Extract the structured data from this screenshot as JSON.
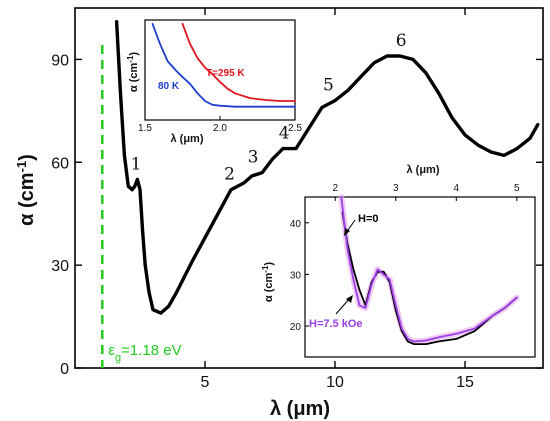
{
  "chart_data": [
    {
      "id": "main",
      "type": "line",
      "xlabel": "λ (μm)",
      "ylabel": "α (cm⁻¹)",
      "xlim": [
        0,
        18
      ],
      "ylim": [
        0,
        105
      ],
      "xticks": [
        5,
        10,
        15
      ],
      "yticks": [
        0,
        30,
        60,
        90
      ],
      "series": [
        {
          "color": "#000000",
          "x": [
            1.6,
            1.75,
            1.9,
            2.05,
            2.2,
            2.3,
            2.4,
            2.5,
            2.6,
            2.7,
            2.85,
            3.0,
            3.3,
            3.6,
            3.9,
            4.5,
            5.0,
            5.5,
            6.0,
            6.5,
            6.8,
            7.2,
            7.6,
            8.0,
            8.5,
            9.0,
            9.5,
            10.0,
            10.5,
            11.0,
            11.5,
            12.0,
            12.5,
            13.0,
            13.5,
            14.0,
            14.5,
            15.0,
            15.5,
            16.0,
            16.5,
            17.0,
            17.5,
            17.8
          ],
          "y": [
            101,
            80,
            62,
            53,
            52,
            53,
            55,
            52,
            40,
            30,
            22,
            17,
            16,
            18,
            22,
            31,
            38,
            45,
            52,
            54,
            56,
            57,
            61,
            64,
            64,
            70,
            76,
            78,
            81,
            85,
            89,
            91,
            91,
            90,
            86,
            80,
            73,
            68,
            65,
            63,
            62,
            64,
            67,
            71
          ]
        }
      ],
      "annotations": {
        "peaks": [
          {
            "label": "1",
            "x": 2.5,
            "y": 55
          },
          {
            "label": "2",
            "x": 6.1,
            "y": 52
          },
          {
            "label": "3",
            "x": 7.0,
            "y": 57
          },
          {
            "label": "4",
            "x": 8.2,
            "y": 64
          },
          {
            "label": "5",
            "x": 9.9,
            "y": 78
          },
          {
            "label": "6",
            "x": 12.7,
            "y": 91
          }
        ],
        "gap_line": {
          "x": 1.05,
          "color": "#22cc22",
          "label": "ε",
          "label_sub": "g",
          "label_rest": "=1.18 eV"
        }
      }
    },
    {
      "id": "inset-top",
      "type": "line",
      "xlabel": "λ (μm)",
      "ylabel": "α (cm⁻¹)",
      "xlim": [
        1.5,
        2.5
      ],
      "ylim": [
        0,
        105
      ],
      "xticks": [
        "1.5",
        "2.0",
        "2.5"
      ],
      "series": [
        {
          "name": "80 K",
          "color": "#1f3fcc",
          "x": [
            1.55,
            1.6,
            1.65,
            1.7,
            1.75,
            1.8,
            1.85,
            1.9,
            1.95,
            2.0,
            2.1,
            2.2,
            2.3,
            2.4,
            2.5
          ],
          "y": [
            101,
            80,
            62,
            53,
            45,
            38,
            28,
            20,
            16,
            15,
            14,
            14,
            14,
            14,
            14
          ]
        },
        {
          "name": "T=295 K",
          "color": "#e0141e",
          "x": [
            1.75,
            1.8,
            1.85,
            1.9,
            1.95,
            2.0,
            2.05,
            2.1,
            2.2,
            2.3,
            2.4,
            2.5
          ],
          "y": [
            101,
            80,
            65,
            55,
            48,
            40,
            33,
            28,
            23,
            21,
            20,
            20
          ]
        }
      ]
    },
    {
      "id": "inset-bottom",
      "type": "line",
      "xlabel": "λ (μm)",
      "ylabel": "α (cm⁻¹)",
      "xlim": [
        1.5,
        5.3
      ],
      "ylim": [
        14,
        45
      ],
      "xticks": [
        2,
        3,
        4,
        5
      ],
      "yticks": [
        20,
        30,
        40
      ],
      "series": [
        {
          "name": "H=0",
          "color": "#000000",
          "x": [
            2.12,
            2.2,
            2.3,
            2.4,
            2.5,
            2.6,
            2.7,
            2.8,
            2.9,
            3.0,
            3.1,
            3.2,
            3.3,
            3.5,
            3.7,
            4.0,
            4.3,
            4.6,
            4.8,
            5.0
          ],
          "y": [
            42,
            36,
            31,
            27,
            24,
            28.5,
            30.5,
            30.5,
            28.5,
            23,
            19,
            17,
            16.5,
            16.5,
            17,
            17.5,
            19,
            22,
            23.5,
            25.5
          ]
        },
        {
          "name": "H=7.5 kOe",
          "color": "#9b3fe6",
          "x": [
            2.1,
            2.2,
            2.3,
            2.4,
            2.5,
            2.6,
            2.7,
            2.8,
            2.9,
            3.0,
            3.1,
            3.2,
            3.3,
            3.5,
            3.7,
            4.0,
            4.3,
            4.6,
            4.8,
            5.0
          ],
          "y": [
            45,
            35,
            29,
            24,
            23.5,
            28,
            31,
            30,
            29,
            24,
            19.5,
            17.5,
            17,
            17.2,
            17.8,
            18.5,
            19.5,
            22,
            23.5,
            25.5
          ]
        }
      ],
      "labels": {
        "h0": "H=0",
        "h75": "H=7.5 kOe"
      }
    }
  ]
}
